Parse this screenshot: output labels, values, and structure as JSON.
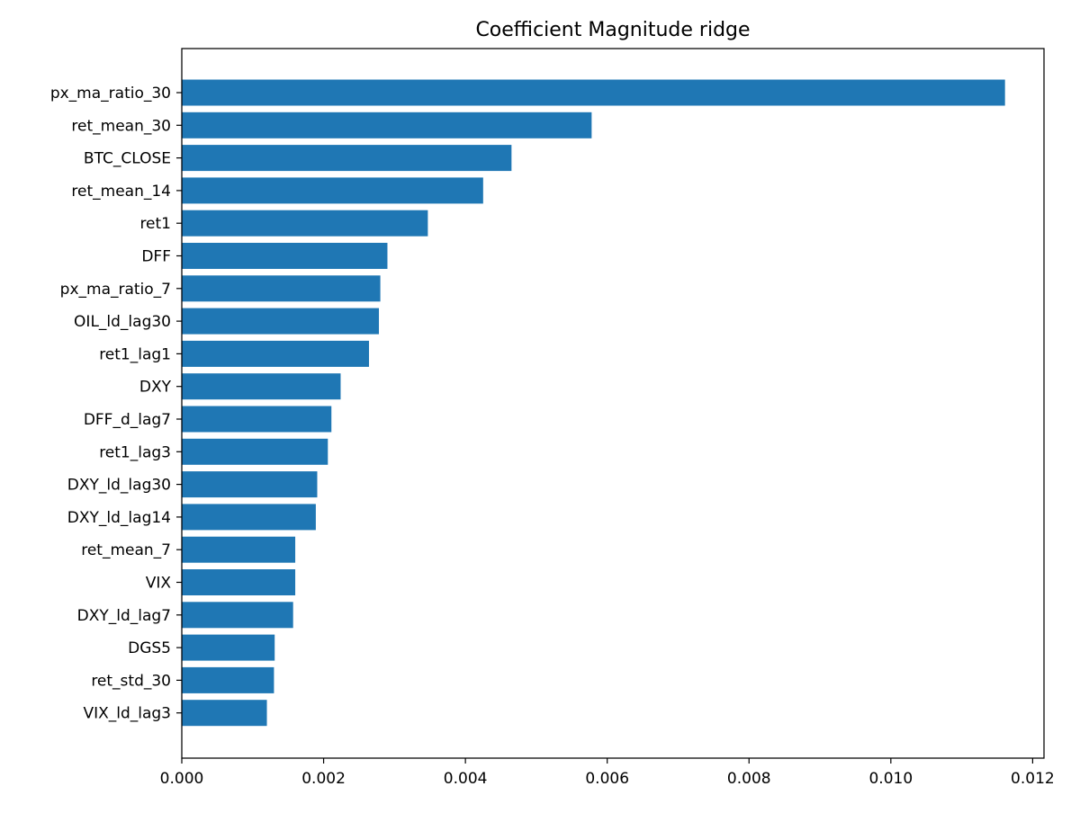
{
  "colors": {
    "bar": "#1f77b4",
    "axis": "#000000",
    "background": "#ffffff"
  },
  "chart_data": {
    "type": "bar",
    "orientation": "horizontal",
    "title": "Coefficient Magnitude ridge",
    "xlabel": "",
    "ylabel": "",
    "xlim": [
      0,
      0.01216
    ],
    "grid": false,
    "xticks": [
      0.0,
      0.002,
      0.004,
      0.006,
      0.008,
      0.01,
      0.012
    ],
    "xtick_labels": [
      "0.000",
      "0.002",
      "0.004",
      "0.006",
      "0.008",
      "0.010",
      "0.012"
    ],
    "categories": [
      "px_ma_ratio_30",
      "ret_mean_30",
      "BTC_CLOSE",
      "ret_mean_14",
      "ret1",
      "DFF",
      "px_ma_ratio_7",
      "OIL_ld_lag30",
      "ret1_lag1",
      "DXY",
      "DFF_d_lag7",
      "ret1_lag3",
      "DXY_ld_lag30",
      "DXY_ld_lag14",
      "ret_mean_7",
      "VIX",
      "DXY_ld_lag7",
      "DGS5",
      "ret_std_30",
      "VIX_ld_lag3"
    ],
    "values": [
      0.01161,
      0.00578,
      0.00465,
      0.00425,
      0.00347,
      0.0029,
      0.0028,
      0.00278,
      0.00264,
      0.00224,
      0.00211,
      0.00206,
      0.00191,
      0.00189,
      0.0016,
      0.0016,
      0.00157,
      0.00131,
      0.0013,
      0.0012
    ]
  }
}
